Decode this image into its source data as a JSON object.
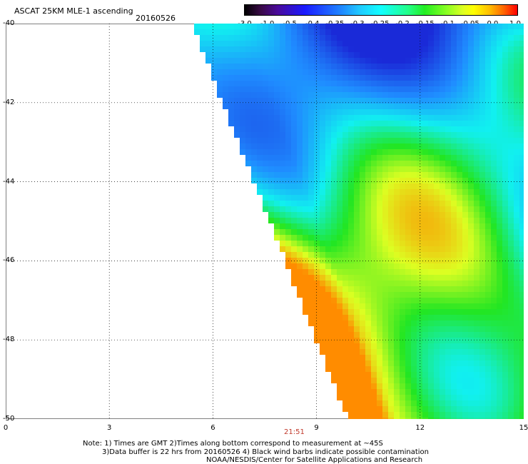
{
  "header": {
    "title": "ASCAT 25KM MLE-1 ascending",
    "date": "20160526"
  },
  "colorbar": {
    "ticks": [
      "-3.0",
      "-1.0",
      "-0.5",
      "-0.4",
      "-0.35",
      "-0.3",
      "-0.25",
      "-0.2",
      "-0.15",
      "-0.1",
      "-0.05",
      "0.0",
      "1.0"
    ]
  },
  "map": {
    "y_ticks": [
      "-40",
      "-42",
      "-44",
      "-46",
      "-48",
      "-50"
    ],
    "x_ticks": [
      "0",
      "3",
      "6",
      "9",
      "12",
      "15"
    ],
    "time_label": "21:51",
    "lat_range": [
      -50,
      -40
    ],
    "lon_range": [
      0,
      15
    ],
    "swath_left_edge": [
      [
        -40,
        5.5
      ],
      [
        -50,
        10
      ]
    ],
    "colors": {
      "low": "#1a2ad8",
      "mid": "#11f0f0",
      "high": "#ff8c00"
    }
  },
  "notes": {
    "line1": "Note: 1) Times are GMT 2)Times along bottom correspond to measurement at ~45S",
    "line2": "3)Data buffer is 22 hrs from 20160526 4) Black wind barbs indicate possible contamination",
    "line3": "NOAA/NESDIS/Center for Satellite Applications and Research"
  }
}
